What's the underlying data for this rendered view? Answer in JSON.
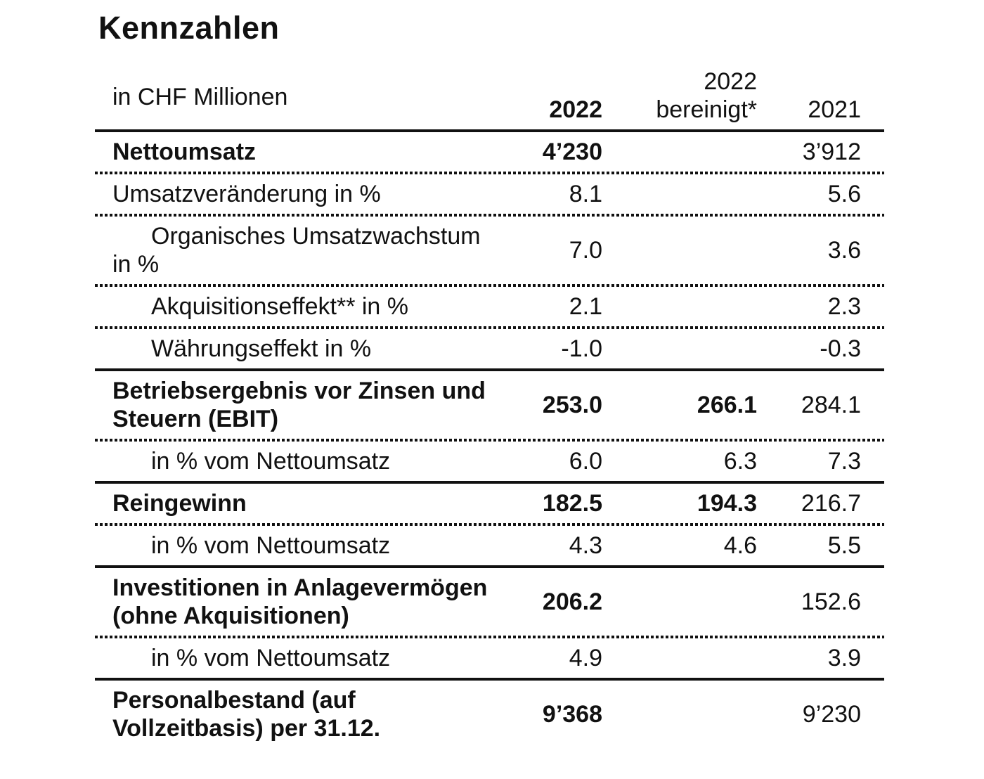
{
  "page": {
    "title": "Kennzahlen"
  },
  "colors": {
    "background": "#ffffff",
    "text": "#111111",
    "rule": "#111111"
  },
  "table": {
    "unit_label": "in CHF Millionen",
    "columns": [
      {
        "label": "2022",
        "bold": true
      },
      {
        "label": "2022 bereinigt*",
        "lines": [
          "2022",
          "bereinigt*"
        ],
        "bold": false
      },
      {
        "label": "2021",
        "bold": false
      }
    ],
    "rows": [
      {
        "label": "Nettoumsatz",
        "style": "bold",
        "col1": "4’230",
        "col2": "",
        "col3": "3’912",
        "rule_after": "dotted"
      },
      {
        "label": "Umsatzveränderung in %",
        "style": "plain",
        "col1": "8.1",
        "col2": "",
        "col3": "5.6",
        "rule_after": "dotted"
      },
      {
        "label": "Organisches Umsatzwachstum in %",
        "style": "sub",
        "col1": "7.0",
        "col2": "",
        "col3": "3.6",
        "rule_after": "dotted"
      },
      {
        "label": "Akquisitionseffekt** in %",
        "style": "sub",
        "col1": "2.1",
        "col2": "",
        "col3": "2.3",
        "rule_after": "dotted"
      },
      {
        "label": "Währungseffekt in %",
        "style": "sub",
        "col1": "-1.0",
        "col2": "",
        "col3": "-0.3",
        "rule_after": "solid"
      },
      {
        "label": "Betriebsergebnis vor Zinsen und Steuern (EBIT)",
        "style": "bold",
        "col1": "253.0",
        "col2": "266.1",
        "col3": "284.1",
        "rule_after": "dotted"
      },
      {
        "label": "in % vom Nettoumsatz",
        "style": "sub",
        "col1": "6.0",
        "col2": "6.3",
        "col3": "7.3",
        "rule_after": "solid"
      },
      {
        "label": "Reingewinn",
        "style": "bold",
        "col1": "182.5",
        "col2": "194.3",
        "col3": "216.7",
        "rule_after": "dotted"
      },
      {
        "label": "in % vom Nettoumsatz",
        "style": "sub",
        "col1": "4.3",
        "col2": "4.6",
        "col3": "5.5",
        "rule_after": "solid"
      },
      {
        "label": "Investitionen in Anlagevermögen (ohne Akquisitionen)",
        "style": "bold",
        "col1": "206.2",
        "col2": "",
        "col3": "152.6",
        "rule_after": "dotted"
      },
      {
        "label": "in % vom Nettoumsatz",
        "style": "sub",
        "col1": "4.9",
        "col2": "",
        "col3": "3.9",
        "rule_after": "solid"
      },
      {
        "label": "Personalbestand (auf Vollzeitbasis) per 31.12.",
        "style": "bold",
        "col1": "9’368",
        "col2": "",
        "col3": "9’230",
        "rule_after": "none"
      }
    ]
  }
}
